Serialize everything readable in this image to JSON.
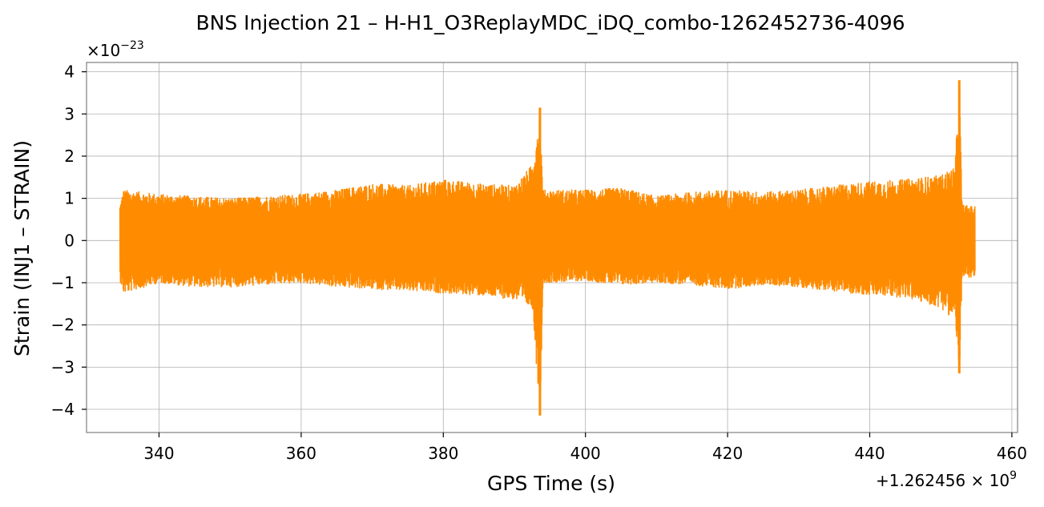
{
  "chart_data": {
    "type": "line",
    "title": "BNS Injection 21 – H-H1_O3ReplayMDC_iDQ_combo-1262452736-4096",
    "xlabel": "GPS Time (s)",
    "ylabel": "Strain (INJ1 – STRAIN)",
    "x_offset_label": "+1.262456 × 10",
    "x_offset_exp": "9",
    "y_scale_label": "×10",
    "y_scale_exp": "−23",
    "xlim": [
      329.8,
      460.8
    ],
    "ylim": [
      -4.55,
      4.22
    ],
    "x_ticks": [
      340,
      360,
      380,
      400,
      420,
      440,
      460
    ],
    "x_tick_labels": [
      "340",
      "360",
      "380",
      "400",
      "420",
      "440",
      "460"
    ],
    "y_ticks": [
      -4,
      -3,
      -2,
      -1,
      0,
      1,
      2,
      3,
      4
    ],
    "y_tick_labels": [
      "−4",
      "−3",
      "−2",
      "−1",
      "0",
      "1",
      "2",
      "3",
      "4"
    ],
    "grid": true,
    "series": [
      {
        "color": "#ff8c00",
        "x_start": 334.5,
        "x_end": 454.8,
        "envelope": [
          {
            "x": 334.5,
            "max": 0.85,
            "min": -0.95
          },
          {
            "x": 335.0,
            "max": 1.2,
            "min": -1.25
          },
          {
            "x": 340,
            "max": 1.1,
            "min": -1.0
          },
          {
            "x": 345,
            "max": 1.05,
            "min": -1.1
          },
          {
            "x": 350,
            "max": 1.0,
            "min": -1.1
          },
          {
            "x": 355,
            "max": 1.05,
            "min": -1.05
          },
          {
            "x": 360,
            "max": 1.1,
            "min": -1.0
          },
          {
            "x": 365,
            "max": 1.2,
            "min": -1.1
          },
          {
            "x": 370,
            "max": 1.35,
            "min": -1.15
          },
          {
            "x": 375,
            "max": 1.3,
            "min": -1.2
          },
          {
            "x": 380,
            "max": 1.45,
            "min": -1.25
          },
          {
            "x": 385,
            "max": 1.35,
            "min": -1.3
          },
          {
            "x": 390,
            "max": 1.3,
            "min": -1.4
          },
          {
            "x": 392.5,
            "max": 1.8,
            "min": -1.6
          },
          {
            "x": 393.6,
            "max": 3.15,
            "min": -4.15
          },
          {
            "x": 394.0,
            "max": 1.2,
            "min": -1.0
          },
          {
            "x": 400,
            "max": 1.2,
            "min": -0.95
          },
          {
            "x": 405,
            "max": 1.25,
            "min": -1.05
          },
          {
            "x": 410,
            "max": 1.05,
            "min": -1.0
          },
          {
            "x": 415,
            "max": 1.15,
            "min": -1.05
          },
          {
            "x": 420,
            "max": 1.2,
            "min": -1.15
          },
          {
            "x": 425,
            "max": 1.15,
            "min": -1.05
          },
          {
            "x": 430,
            "max": 1.2,
            "min": -1.1
          },
          {
            "x": 435,
            "max": 1.3,
            "min": -1.2
          },
          {
            "x": 440,
            "max": 1.4,
            "min": -1.3
          },
          {
            "x": 445,
            "max": 1.45,
            "min": -1.35
          },
          {
            "x": 450,
            "max": 1.55,
            "min": -1.6
          },
          {
            "x": 452.0,
            "max": 1.75,
            "min": -1.9
          },
          {
            "x": 452.6,
            "max": 3.8,
            "min": -3.15
          },
          {
            "x": 453.0,
            "max": 0.85,
            "min": -0.9
          },
          {
            "x": 454.8,
            "max": 0.8,
            "min": -0.85
          }
        ]
      }
    ]
  }
}
